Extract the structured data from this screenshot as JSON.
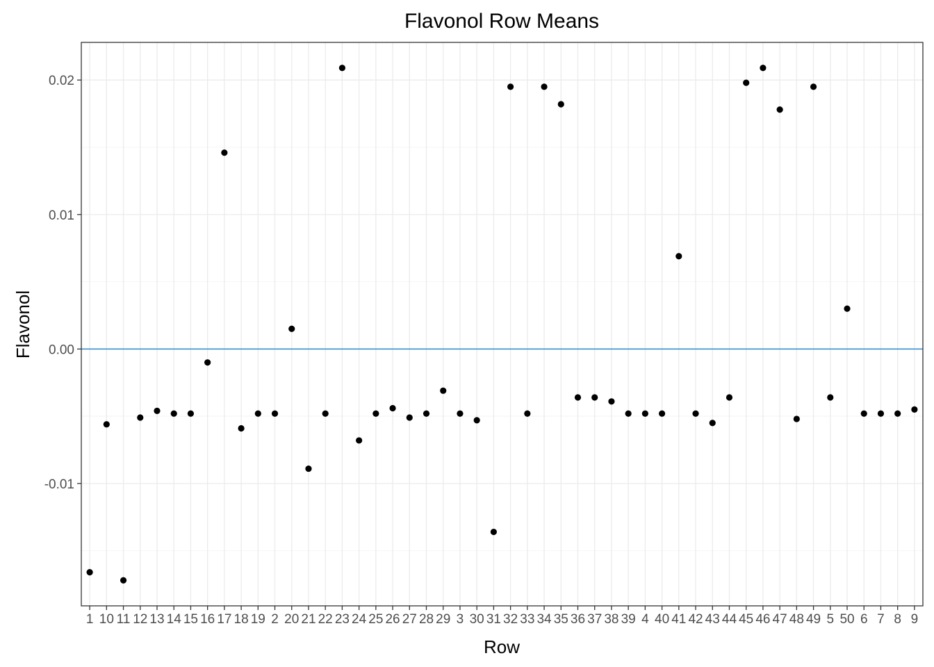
{
  "chart_data": {
    "type": "scatter",
    "title": "Flavonol Row Means",
    "xlabel": "Row",
    "ylabel": "Flavonol",
    "categories": [
      "1",
      "10",
      "11",
      "12",
      "13",
      "14",
      "15",
      "16",
      "17",
      "18",
      "19",
      "2",
      "20",
      "21",
      "22",
      "23",
      "24",
      "25",
      "26",
      "27",
      "28",
      "29",
      "3",
      "30",
      "31",
      "32",
      "33",
      "34",
      "35",
      "36",
      "37",
      "38",
      "39",
      "4",
      "40",
      "41",
      "42",
      "43",
      "44",
      "45",
      "46",
      "47",
      "48",
      "49",
      "5",
      "50",
      "6",
      "7",
      "8",
      "9"
    ],
    "values": [
      -0.0166,
      -0.0056,
      -0.0172,
      -0.0051,
      -0.0046,
      -0.0048,
      -0.0048,
      -0.001,
      0.0146,
      -0.0059,
      -0.0048,
      -0.0048,
      0.0015,
      -0.0089,
      -0.0048,
      0.0209,
      -0.0068,
      -0.0048,
      -0.0044,
      -0.0051,
      -0.0048,
      -0.0031,
      -0.0048,
      -0.0053,
      -0.0136,
      0.0195,
      -0.0048,
      0.0195,
      0.0182,
      -0.0036,
      -0.0036,
      -0.0039,
      -0.0048,
      -0.0048,
      -0.0048,
      0.0069,
      -0.0048,
      -0.0055,
      -0.0036,
      0.0198,
      0.0209,
      0.0178,
      -0.0052,
      0.0195,
      -0.0036,
      0.003,
      -0.0048,
      -0.0048,
      -0.0048,
      -0.0045
    ],
    "yticks": [
      -0.01,
      0.0,
      0.01,
      0.02
    ],
    "ytick_labels": [
      "-0.01",
      "0.00",
      "0.01",
      "0.02"
    ],
    "ylim": [
      -0.0191,
      0.0228
    ],
    "hline": 0.0,
    "grid": true,
    "legend": "none",
    "colors": {
      "points": "#000000",
      "hline": "#3a8fd0"
    }
  }
}
